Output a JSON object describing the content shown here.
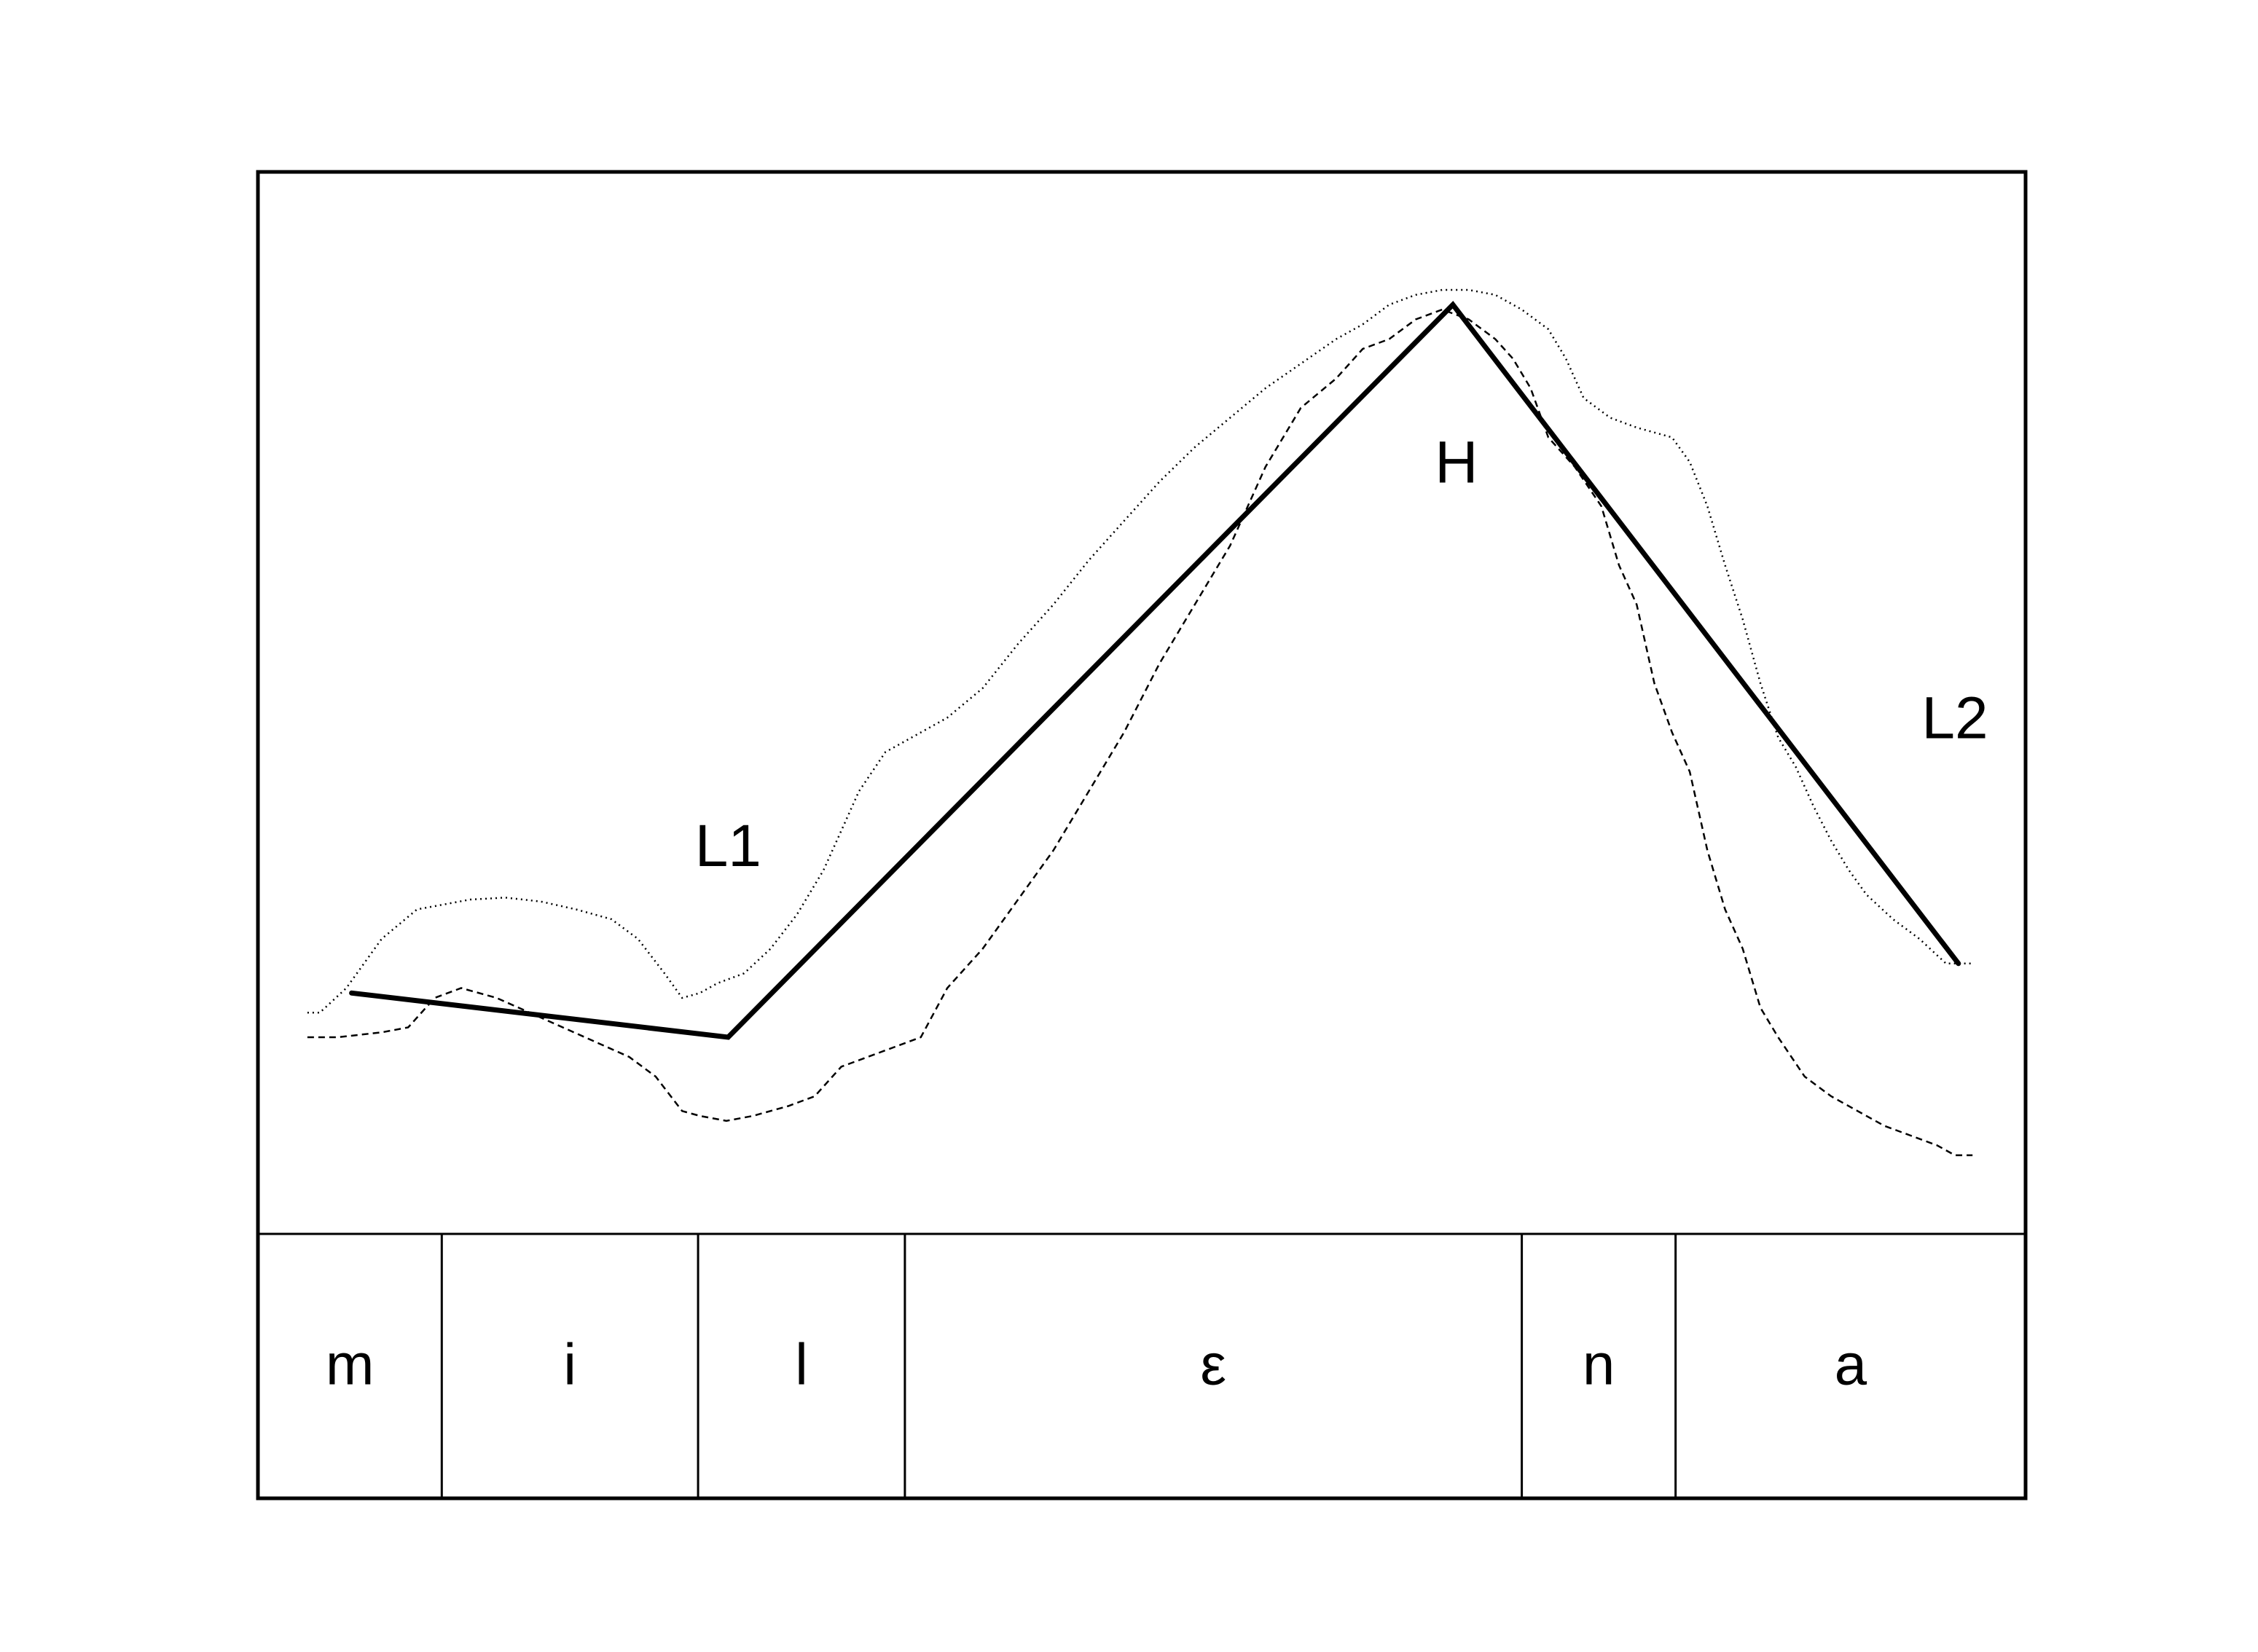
{
  "chart_data": {
    "type": "line",
    "title": "",
    "xlabel": "",
    "ylabel": "",
    "xlim": [
      0,
      1
    ],
    "ylim": [
      0,
      1
    ],
    "grid": false,
    "legend": "none",
    "segments": [
      {
        "label": "m",
        "start": 0.0,
        "end": 0.104
      },
      {
        "label": "i",
        "start": 0.104,
        "end": 0.249
      },
      {
        "label": "l",
        "start": 0.249,
        "end": 0.366
      },
      {
        "label": "ε",
        "start": 0.366,
        "end": 0.715
      },
      {
        "label": "n",
        "start": 0.715,
        "end": 0.802
      },
      {
        "label": "a",
        "start": 0.802,
        "end": 1.0
      }
    ],
    "tone_labels": [
      {
        "text": "L1",
        "x": 0.266,
        "y": 0.35
      },
      {
        "text": "H",
        "x": 0.678,
        "y": 0.74
      },
      {
        "text": "L2",
        "x": 0.96,
        "y": 0.48
      }
    ],
    "series": [
      {
        "style": "stylized",
        "x": [
          0.053,
          0.266,
          0.676,
          0.962
        ],
        "y": [
          0.205,
          0.16,
          0.905,
          0.235
        ]
      },
      {
        "style": "dotted",
        "x": [
          0.028,
          0.035,
          0.05,
          0.07,
          0.09,
          0.105,
          0.12,
          0.14,
          0.16,
          0.18,
          0.2,
          0.215,
          0.23,
          0.24,
          0.25,
          0.26,
          0.275,
          0.29,
          0.305,
          0.32,
          0.33,
          0.34,
          0.355,
          0.37,
          0.39,
          0.41,
          0.43,
          0.45,
          0.47,
          0.49,
          0.51,
          0.53,
          0.55,
          0.57,
          0.59,
          0.61,
          0.625,
          0.64,
          0.655,
          0.67,
          0.685,
          0.7,
          0.715,
          0.73,
          0.74,
          0.75,
          0.765,
          0.78,
          0.8,
          0.81,
          0.82,
          0.83,
          0.84,
          0.85,
          0.86,
          0.87,
          0.88,
          0.89,
          0.9,
          0.91,
          0.925,
          0.94,
          0.955,
          0.97
        ],
        "y": [
          0.185,
          0.185,
          0.21,
          0.26,
          0.29,
          0.295,
          0.3,
          0.302,
          0.298,
          0.29,
          0.28,
          0.26,
          0.225,
          0.2,
          0.205,
          0.215,
          0.225,
          0.25,
          0.285,
          0.33,
          0.37,
          0.41,
          0.45,
          0.465,
          0.485,
          0.515,
          0.56,
          0.6,
          0.645,
          0.685,
          0.725,
          0.76,
          0.79,
          0.82,
          0.845,
          0.87,
          0.885,
          0.905,
          0.915,
          0.92,
          0.92,
          0.915,
          0.9,
          0.88,
          0.85,
          0.81,
          0.79,
          0.78,
          0.77,
          0.745,
          0.7,
          0.64,
          0.585,
          0.52,
          0.465,
          0.435,
          0.395,
          0.36,
          0.33,
          0.305,
          0.28,
          0.26,
          0.235,
          0.235
        ]
      },
      {
        "style": "dashed",
        "x": [
          0.028,
          0.045,
          0.07,
          0.085,
          0.1,
          0.115,
          0.135,
          0.16,
          0.185,
          0.21,
          0.225,
          0.24,
          0.25,
          0.265,
          0.28,
          0.3,
          0.315,
          0.33,
          0.345,
          0.36,
          0.375,
          0.39,
          0.41,
          0.43,
          0.45,
          0.47,
          0.49,
          0.51,
          0.53,
          0.55,
          0.57,
          0.59,
          0.61,
          0.625,
          0.64,
          0.655,
          0.67,
          0.685,
          0.7,
          0.71,
          0.72,
          0.73,
          0.745,
          0.76,
          0.77,
          0.78,
          0.79,
          0.8,
          0.81,
          0.82,
          0.83,
          0.84,
          0.85,
          0.86,
          0.875,
          0.89,
          0.905,
          0.92,
          0.935,
          0.95,
          0.96,
          0.97
        ],
        "y": [
          0.16,
          0.16,
          0.165,
          0.17,
          0.2,
          0.21,
          0.2,
          0.18,
          0.16,
          0.14,
          0.12,
          0.085,
          0.08,
          0.075,
          0.08,
          0.09,
          0.1,
          0.13,
          0.14,
          0.15,
          0.16,
          0.21,
          0.25,
          0.3,
          0.35,
          0.41,
          0.47,
          0.54,
          0.6,
          0.66,
          0.74,
          0.8,
          0.83,
          0.86,
          0.87,
          0.89,
          0.9,
          0.89,
          0.87,
          0.85,
          0.82,
          0.77,
          0.74,
          0.7,
          0.64,
          0.6,
          0.52,
          0.47,
          0.43,
          0.35,
          0.29,
          0.25,
          0.19,
          0.16,
          0.12,
          0.1,
          0.085,
          0.07,
          0.06,
          0.05,
          0.04,
          0.04
        ]
      }
    ]
  }
}
